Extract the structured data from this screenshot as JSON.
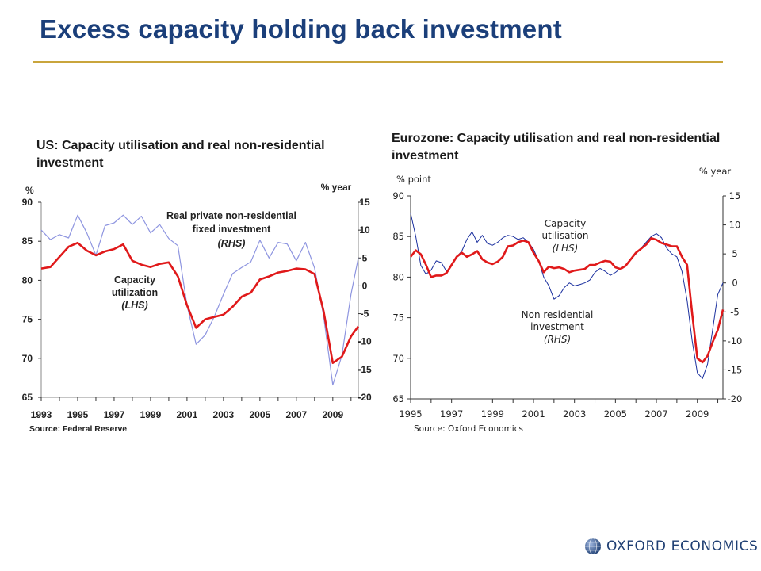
{
  "slide": {
    "title": "Excess capacity holding back investment",
    "brand": "OXFORD ECONOMICS",
    "brand_color": "#1f3f73",
    "accent": "#c9a53c",
    "title_color": "#1b3f7a"
  },
  "chart_data": [
    {
      "type": "line",
      "title": "US: Capacity utilisation and real non-residential investment",
      "left_axis_unit": "%",
      "right_axis_unit": "% year",
      "source": "Source: Federal Reserve",
      "x_ticks": [
        "1993",
        "1995",
        "1997",
        "1999",
        "2001",
        "2003",
        "2005",
        "2007",
        "2009"
      ],
      "xlim": [
        1993,
        2010.4
      ],
      "ylim_left": [
        65,
        90
      ],
      "ylim_right": [
        -20,
        15
      ],
      "yticks_left": [
        65,
        70,
        75,
        80,
        85,
        90
      ],
      "yticks_right": [
        -20,
        -15,
        -10,
        -5,
        0,
        5,
        10,
        15
      ],
      "grid": false,
      "series": [
        {
          "name": "Capacity utilization (LHS)",
          "label_lines": [
            "Capacity",
            "utilization",
            "(LHS)"
          ],
          "axis": "left",
          "color": "#e0191a",
          "x": [
            1993,
            1993.5,
            1994,
            1994.5,
            1995,
            1995.5,
            1996,
            1996.5,
            1997,
            1997.5,
            1998,
            1998.5,
            1999,
            1999.5,
            2000,
            2000.5,
            2001,
            2001.5,
            2002,
            2002.5,
            2003,
            2003.5,
            2004,
            2004.5,
            2005,
            2005.5,
            2006,
            2006.5,
            2007,
            2007.5,
            2008,
            2008.5,
            2009,
            2009.5,
            2010,
            2010.4
          ],
          "y": [
            81.5,
            81.7,
            83.0,
            84.3,
            84.8,
            83.8,
            83.2,
            83.7,
            84.0,
            84.6,
            82.5,
            82.0,
            81.7,
            82.1,
            82.3,
            80.5,
            76.8,
            73.9,
            75.0,
            75.3,
            75.6,
            76.6,
            77.9,
            78.4,
            80.1,
            80.5,
            81.0,
            81.2,
            81.5,
            81.4,
            80.8,
            76.0,
            69.4,
            70.2,
            72.8,
            74.1
          ]
        },
        {
          "name": "Real private non-residential fixed investment (RHS)",
          "label_lines": [
            "Real private non-residential",
            "fixed investment",
            "(RHS)"
          ],
          "axis": "right",
          "color": "#8e95e0",
          "x": [
            1993,
            1993.5,
            1994,
            1994.5,
            1995,
            1995.5,
            1996,
            1996.5,
            1997,
            1997.5,
            1998,
            1998.5,
            1999,
            1999.5,
            2000,
            2000.5,
            2001,
            2001.5,
            2002,
            2002.5,
            2003,
            2003.5,
            2004,
            2004.5,
            2005,
            2005.5,
            2006,
            2006.5,
            2007,
            2007.5,
            2008,
            2008.5,
            2009,
            2009.5,
            2010,
            2010.4
          ],
          "y": [
            10.0,
            8.3,
            9.2,
            8.6,
            12.7,
            9.5,
            5.5,
            10.8,
            11.3,
            12.7,
            11.0,
            12.5,
            9.5,
            11.0,
            8.5,
            7.2,
            -3.5,
            -10.5,
            -8.8,
            -5.5,
            -1.5,
            2.2,
            3.3,
            4.3,
            8.2,
            5.0,
            7.8,
            7.5,
            4.5,
            7.8,
            3.2,
            -5.5,
            -17.8,
            -12.5,
            -1.5,
            5.0
          ]
        }
      ]
    },
    {
      "type": "line",
      "title": "Eurozone: Capacity utilisation and real non-residential investment",
      "left_axis_unit": "% point",
      "right_axis_unit": "% year",
      "source": "Source: Oxford Economics",
      "x_ticks": [
        "1995",
        "1997",
        "1999",
        "2001",
        "2003",
        "2005",
        "2007",
        "2009"
      ],
      "xlim": [
        1995,
        2010.25
      ],
      "ylim_left": [
        65,
        90
      ],
      "ylim_right": [
        -20,
        15
      ],
      "yticks_left": [
        65,
        70,
        75,
        80,
        85,
        90
      ],
      "yticks_right": [
        -20,
        -15,
        -10,
        -5,
        0,
        5,
        10,
        15
      ],
      "grid": false,
      "series": [
        {
          "name": "Capacity utilisation (LHS)",
          "label_lines": [
            "Capacity",
            "utilisation",
            "(LHS)"
          ],
          "axis": "left",
          "color": "#e0191a",
          "x": [
            1995,
            1995.25,
            1995.5,
            1995.75,
            1996,
            1996.25,
            1996.5,
            1996.75,
            1997,
            1997.25,
            1997.5,
            1997.75,
            1998,
            1998.25,
            1998.5,
            1998.75,
            1999,
            1999.25,
            1999.5,
            1999.75,
            2000,
            2000.25,
            2000.5,
            2000.75,
            2001,
            2001.25,
            2001.5,
            2001.75,
            2002,
            2002.25,
            2002.5,
            2002.75,
            2003,
            2003.25,
            2003.5,
            2003.75,
            2004,
            2004.25,
            2004.5,
            2004.75,
            2005,
            2005.25,
            2005.5,
            2005.75,
            2006,
            2006.25,
            2006.5,
            2006.75,
            2007,
            2007.25,
            2007.5,
            2007.75,
            2008,
            2008.25,
            2008.5,
            2008.75,
            2009,
            2009.25,
            2009.5,
            2009.75,
            2010,
            2010.25
          ],
          "y": [
            82.5,
            83.3,
            82.8,
            81.5,
            80.0,
            80.2,
            80.2,
            80.5,
            81.5,
            82.5,
            83.0,
            82.5,
            82.8,
            83.2,
            82.2,
            81.8,
            81.6,
            81.9,
            82.5,
            83.8,
            83.9,
            84.3,
            84.5,
            84.3,
            83.0,
            82.0,
            80.6,
            81.3,
            81.1,
            81.2,
            81.0,
            80.6,
            80.8,
            80.9,
            81.0,
            81.5,
            81.5,
            81.8,
            82.0,
            81.9,
            81.2,
            81.0,
            81.4,
            82.2,
            83.0,
            83.5,
            84.0,
            84.8,
            84.6,
            84.2,
            84.0,
            83.8,
            83.8,
            82.5,
            81.5,
            75.5,
            70.0,
            69.5,
            70.3,
            72.0,
            73.5,
            76.0
          ]
        },
        {
          "name": "Non residential investment (RHS)",
          "label_lines": [
            "Non residential",
            "investment",
            "(RHS)"
          ],
          "axis": "right",
          "color": "#1a2f9e",
          "x": [
            1995,
            1995.25,
            1995.5,
            1995.75,
            1996,
            1996.25,
            1996.5,
            1996.75,
            1997,
            1997.25,
            1997.5,
            1997.75,
            1998,
            1998.25,
            1998.5,
            1998.75,
            1999,
            1999.25,
            1999.5,
            1999.75,
            2000,
            2000.25,
            2000.5,
            2000.75,
            2001,
            2001.25,
            2001.5,
            2001.75,
            2002,
            2002.25,
            2002.5,
            2002.75,
            2003,
            2003.25,
            2003.5,
            2003.75,
            2004,
            2004.25,
            2004.5,
            2004.75,
            2005,
            2005.25,
            2005.5,
            2005.75,
            2006,
            2006.25,
            2006.5,
            2006.75,
            2007,
            2007.25,
            2007.5,
            2007.75,
            2008,
            2008.25,
            2008.5,
            2008.75,
            2009,
            2009.25,
            2009.5,
            2009.75,
            2010,
            2010.25
          ],
          "y": [
            12.0,
            8.0,
            3.0,
            1.5,
            2.2,
            3.8,
            3.5,
            2.0,
            3.0,
            4.5,
            5.5,
            7.5,
            8.8,
            7.0,
            8.2,
            6.8,
            6.5,
            7.0,
            7.8,
            8.2,
            8.0,
            7.5,
            7.8,
            7.0,
            5.8,
            3.8,
            1.0,
            -0.5,
            -2.8,
            -2.2,
            -0.8,
            0.0,
            -0.5,
            -0.3,
            0.0,
            0.5,
            1.8,
            2.5,
            2.0,
            1.3,
            1.8,
            2.5,
            3.0,
            4.0,
            5.0,
            6.0,
            7.0,
            8.0,
            8.5,
            7.8,
            6.0,
            5.0,
            4.5,
            2.0,
            -3.0,
            -10.0,
            -15.5,
            -16.5,
            -14.0,
            -8.0,
            -2.0,
            0.0
          ]
        }
      ]
    }
  ]
}
